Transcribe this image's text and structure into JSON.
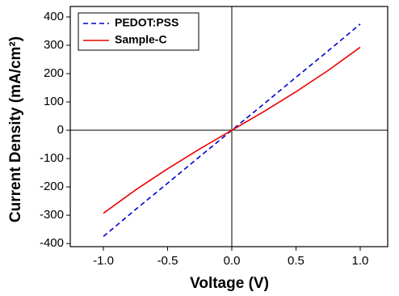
{
  "chart_data": {
    "type": "line",
    "x_label": "Voltage (V)",
    "y_label": "Current Density (mA/cm²)",
    "x": [
      -1,
      -0.75,
      -0.5,
      -0.25,
      0,
      0.25,
      0.5,
      0.75,
      1
    ],
    "series": [
      {
        "name": "PEDOT:PSS",
        "color": "#0000cc",
        "dash": true,
        "values": [
          -375,
          -280,
          -187,
          -93,
          0,
          93,
          187,
          280,
          375
        ]
      },
      {
        "name": "Sample-C",
        "color": "#ee0000",
        "dash": false,
        "values": [
          -293,
          -211,
          -136,
          -66,
          0,
          66,
          136,
          211,
          293
        ]
      }
    ],
    "xlim": [
      -1.258,
      1.214
    ],
    "ylim": [
      -411,
      437
    ],
    "xticks": [
      {
        "value": -1,
        "label": "-1.0"
      },
      -0.5,
      {
        "value": 0,
        "label": "0.0"
      },
      0.5,
      {
        "value": 1,
        "label": "1.0"
      }
    ],
    "yticks": [
      -400,
      -300,
      -200,
      -100,
      0,
      100,
      200,
      300,
      400
    ],
    "zero_lines": true,
    "legend": "upper left"
  }
}
